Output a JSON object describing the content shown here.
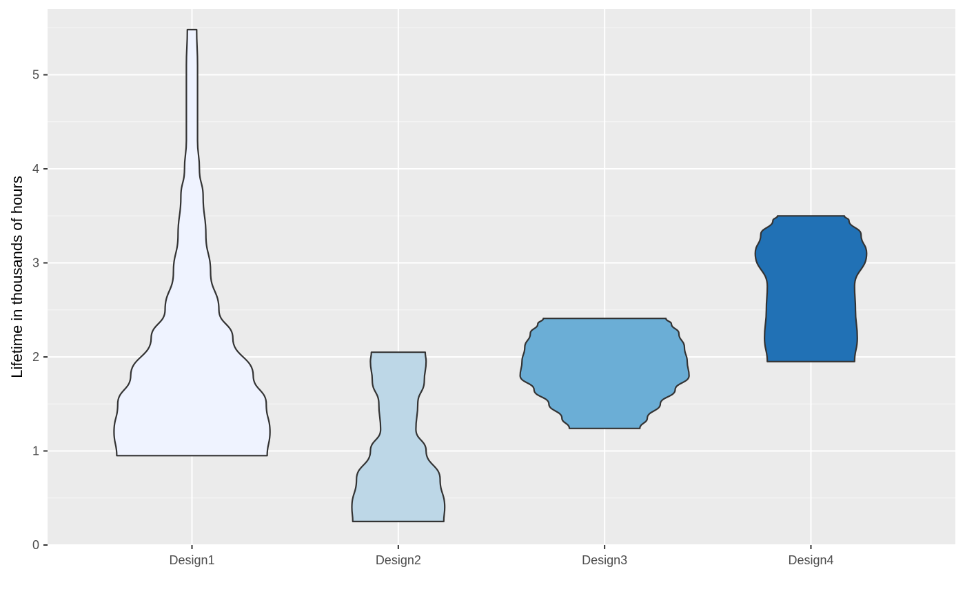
{
  "chart_data": {
    "type": "violin",
    "title": "",
    "xlabel": "",
    "ylabel": "Lifetime in thousands of hours",
    "ylim": [
      0,
      5.7
    ],
    "y_ticks": [
      0,
      1,
      2,
      3,
      4,
      5
    ],
    "y_tick_labels": [
      "0",
      "1",
      "2",
      "3",
      "4",
      "5"
    ],
    "grid": true,
    "legend": "none",
    "background": "#ebebeb",
    "gridline_color": "#ffffff",
    "outline_color": "#333333",
    "categories": [
      "Design1",
      "Design2",
      "Design3",
      "Design4"
    ],
    "series": [
      {
        "category": "Design1",
        "color": "#eff3ff",
        "min": 0.95,
        "max": 5.48,
        "density_profile": [
          [
            0.95,
            0.81
          ],
          [
            1.2,
            0.84
          ],
          [
            1.5,
            0.8
          ],
          [
            1.8,
            0.66
          ],
          [
            2.2,
            0.44
          ],
          [
            2.5,
            0.29
          ],
          [
            2.9,
            0.2
          ],
          [
            3.3,
            0.15
          ],
          [
            3.7,
            0.12
          ],
          [
            4.0,
            0.08
          ],
          [
            4.3,
            0.06
          ],
          [
            4.7,
            0.06
          ],
          [
            5.1,
            0.06
          ],
          [
            5.48,
            0.05
          ]
        ]
      },
      {
        "category": "Design2",
        "color": "#bdd7e7",
        "min": 0.25,
        "max": 2.05,
        "density_profile": [
          [
            0.25,
            0.49
          ],
          [
            0.4,
            0.5
          ],
          [
            0.7,
            0.45
          ],
          [
            1.0,
            0.3
          ],
          [
            1.23,
            0.19
          ],
          [
            1.5,
            0.21
          ],
          [
            1.75,
            0.28
          ],
          [
            1.95,
            0.3
          ],
          [
            2.05,
            0.29
          ]
        ]
      },
      {
        "category": "Design3",
        "color": "#6baed6",
        "min": 1.24,
        "max": 2.41,
        "density_profile": [
          [
            1.24,
            0.38
          ],
          [
            1.35,
            0.46
          ],
          [
            1.5,
            0.6
          ],
          [
            1.65,
            0.76
          ],
          [
            1.8,
            0.91
          ],
          [
            1.95,
            0.89
          ],
          [
            2.1,
            0.86
          ],
          [
            2.25,
            0.8
          ],
          [
            2.35,
            0.72
          ],
          [
            2.41,
            0.66
          ]
        ]
      },
      {
        "category": "Design4",
        "color": "#2171b5",
        "min": 1.95,
        "max": 3.5,
        "density_profile": [
          [
            1.95,
            0.47
          ],
          [
            2.2,
            0.5
          ],
          [
            2.5,
            0.48
          ],
          [
            2.75,
            0.47
          ],
          [
            3.1,
            0.6
          ],
          [
            3.3,
            0.54
          ],
          [
            3.45,
            0.41
          ],
          [
            3.5,
            0.36
          ]
        ]
      }
    ]
  }
}
